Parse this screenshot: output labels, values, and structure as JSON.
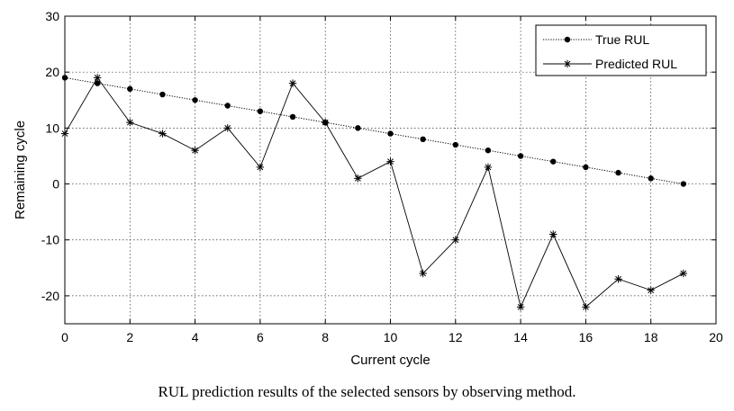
{
  "chart_data": {
    "type": "line",
    "title": "",
    "xlabel": "Current cycle",
    "ylabel": "Remaining cycle",
    "xlim": [
      0,
      20
    ],
    "ylim": [
      -25,
      30
    ],
    "xticks": [
      0,
      2,
      4,
      6,
      8,
      10,
      12,
      14,
      16,
      18,
      20
    ],
    "yticks": [
      -20,
      -10,
      0,
      10,
      20,
      30
    ],
    "grid": true,
    "legend_position": "top-right",
    "x": [
      0,
      1,
      2,
      3,
      4,
      5,
      6,
      7,
      8,
      9,
      10,
      11,
      12,
      13,
      14,
      15,
      16,
      17,
      18,
      19
    ],
    "series": [
      {
        "name": "True RUL",
        "marker": "dot",
        "values": [
          19,
          18,
          17,
          16,
          15,
          14,
          13,
          12,
          11,
          10,
          9,
          8,
          7,
          6,
          5,
          4,
          3,
          2,
          1,
          0
        ]
      },
      {
        "name": "Predicted RUL",
        "marker": "asterisk",
        "values": [
          9,
          19,
          11,
          9,
          6,
          10,
          3,
          18,
          11,
          1,
          4,
          -16,
          -10,
          3,
          -22,
          -9,
          -22,
          -17,
          -19,
          -16
        ]
      }
    ]
  },
  "caption": "RUL prediction results of the selected sensors by observing method."
}
